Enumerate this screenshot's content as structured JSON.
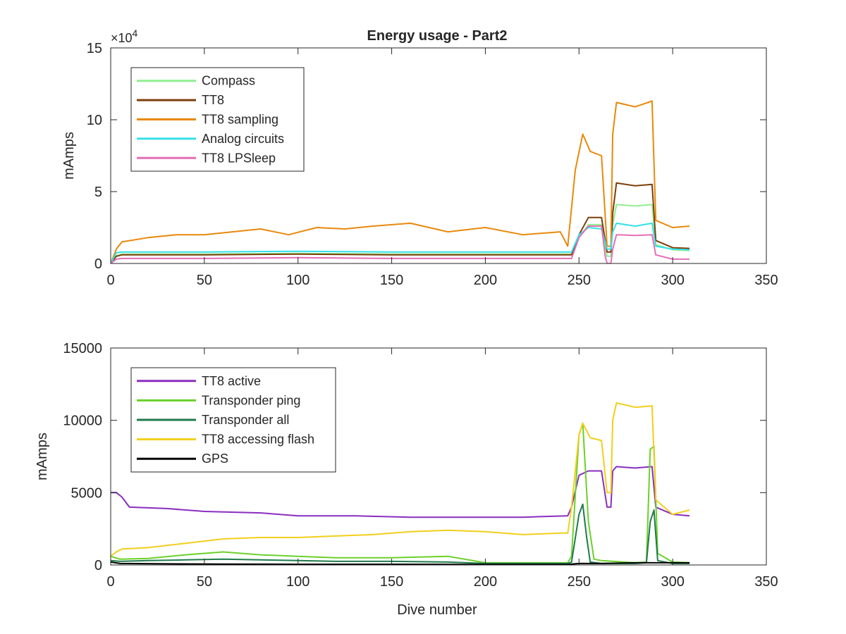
{
  "figure": {
    "title": "Energy usage - Part2",
    "xlabel": "Dive number"
  },
  "chart_data": [
    {
      "type": "line",
      "title": "Energy usage - Part2",
      "xlabel": "",
      "ylabel": "mAmps",
      "xlim": [
        0,
        350
      ],
      "ylim": [
        0,
        150000
      ],
      "xticks": [
        0,
        50,
        100,
        150,
        200,
        250,
        300,
        350
      ],
      "xtick_labels": [
        "0",
        "50",
        "100",
        "150",
        "200",
        "250",
        "300",
        "350"
      ],
      "yticks": [
        0,
        50000,
        100000,
        150000
      ],
      "ytick_labels": [
        "0",
        "5",
        "10",
        "15"
      ],
      "y_exponent_label": "×10^4",
      "grid": false,
      "legend_position": "top-left",
      "series": [
        {
          "name": "Compass",
          "color": "#90ee90",
          "x": [
            0,
            3,
            6,
            50,
            100,
            150,
            200,
            244,
            246,
            250,
            255,
            262,
            265,
            267,
            268,
            270,
            280,
            289,
            291,
            300,
            309
          ],
          "y": [
            0,
            5500,
            6500,
            6500,
            7000,
            6500,
            6500,
            6500,
            6500,
            18000,
            27000,
            27000,
            5000,
            5000,
            27000,
            41000,
            40000,
            41000,
            13000,
            9500,
            9000
          ]
        },
        {
          "name": "TT8",
          "color": "#7b3f0a",
          "x": [
            0,
            3,
            6,
            50,
            100,
            150,
            200,
            244,
            246,
            250,
            255,
            262,
            265,
            267,
            268,
            270,
            280,
            289,
            291,
            300,
            309
          ],
          "y": [
            0,
            5000,
            6000,
            6000,
            6500,
            6000,
            6000,
            6000,
            6000,
            20000,
            32000,
            32000,
            8000,
            8000,
            35000,
            56000,
            54000,
            55000,
            16000,
            11000,
            10500
          ]
        },
        {
          "name": "TT8 sampling",
          "color": "#e8890c",
          "x": [
            0,
            3,
            6,
            20,
            35,
            50,
            65,
            80,
            95,
            110,
            125,
            140,
            160,
            180,
            200,
            220,
            240,
            244,
            248,
            252,
            256,
            262,
            265,
            267,
            268,
            270,
            280,
            289,
            291,
            300,
            309
          ],
          "y": [
            0,
            10000,
            15000,
            18000,
            20000,
            20000,
            22000,
            24000,
            20000,
            25000,
            24000,
            26000,
            28000,
            22000,
            25000,
            20000,
            22000,
            12000,
            65000,
            90000,
            78000,
            75000,
            12000,
            12000,
            90000,
            112000,
            109000,
            113000,
            30000,
            25000,
            26000
          ]
        },
        {
          "name": "Analog circuits",
          "color": "#33e0e8",
          "x": [
            0,
            3,
            6,
            50,
            100,
            150,
            200,
            244,
            246,
            250,
            255,
            262,
            265,
            267,
            268,
            270,
            280,
            289,
            291,
            300,
            309
          ],
          "y": [
            0,
            7500,
            8000,
            8000,
            8500,
            8000,
            8000,
            8000,
            8000,
            20000,
            25000,
            24000,
            10000,
            10000,
            22000,
            28000,
            26000,
            28000,
            12000,
            10000,
            9500
          ]
        },
        {
          "name": "TT8 LPSleep",
          "color": "#e46fb6",
          "x": [
            0,
            3,
            6,
            50,
            100,
            150,
            200,
            244,
            246,
            250,
            255,
            262,
            264,
            265,
            267,
            268,
            270,
            280,
            289,
            291,
            300,
            309
          ],
          "y": [
            0,
            3000,
            3500,
            3500,
            4000,
            3500,
            3500,
            3500,
            3500,
            18000,
            26000,
            26000,
            5000,
            0,
            0,
            10000,
            20000,
            19500,
            20000,
            6000,
            3000,
            3000
          ]
        }
      ]
    },
    {
      "type": "line",
      "title": "",
      "xlabel": "Dive number",
      "ylabel": "mAmps",
      "xlim": [
        0,
        350
      ],
      "ylim": [
        0,
        15000
      ],
      "xticks": [
        0,
        50,
        100,
        150,
        200,
        250,
        300,
        350
      ],
      "xtick_labels": [
        "0",
        "50",
        "100",
        "150",
        "200",
        "250",
        "300",
        "350"
      ],
      "yticks": [
        0,
        5000,
        10000,
        15000
      ],
      "ytick_labels": [
        "0",
        "5000",
        "10000",
        "15000"
      ],
      "grid": false,
      "legend_position": "top-left",
      "series": [
        {
          "name": "TT8 active",
          "color": "#8a2ebf",
          "x": [
            0,
            3,
            6,
            10,
            30,
            50,
            80,
            100,
            130,
            160,
            190,
            220,
            244,
            246,
            250,
            255,
            262,
            265,
            267,
            268,
            270,
            280,
            289,
            291,
            300,
            309
          ],
          "y": [
            5000,
            5000,
            4700,
            4000,
            3900,
            3700,
            3600,
            3400,
            3400,
            3300,
            3300,
            3300,
            3400,
            4000,
            6200,
            6500,
            6500,
            4000,
            4000,
            6500,
            6800,
            6700,
            6800,
            4000,
            3500,
            3400
          ]
        },
        {
          "name": "Transponder ping",
          "color": "#6bd12a",
          "x": [
            0,
            5,
            20,
            40,
            60,
            80,
            100,
            120,
            150,
            180,
            200,
            244,
            246,
            250,
            252,
            255,
            258,
            262,
            280,
            286,
            288,
            290,
            292,
            300,
            309
          ],
          "y": [
            600,
            400,
            450,
            700,
            900,
            700,
            600,
            500,
            500,
            600,
            150,
            150,
            600,
            9000,
            9800,
            3000,
            400,
            300,
            150,
            200,
            8000,
            8200,
            800,
            200,
            150
          ]
        },
        {
          "name": "Transponder all",
          "color": "#1f7a4a",
          "x": [
            0,
            5,
            20,
            40,
            60,
            80,
            100,
            120,
            150,
            180,
            200,
            244,
            246,
            250,
            252,
            254,
            256,
            262,
            280,
            286,
            288,
            290,
            292,
            300,
            309
          ],
          "y": [
            300,
            250,
            300,
            350,
            400,
            350,
            300,
            250,
            250,
            200,
            100,
            100,
            200,
            3500,
            4200,
            2000,
            200,
            100,
            100,
            150,
            3000,
            3800,
            300,
            100,
            100
          ]
        },
        {
          "name": "TT8 accessing flash",
          "color": "#f2cf1d",
          "x": [
            0,
            3,
            6,
            20,
            40,
            60,
            80,
            100,
            120,
            140,
            160,
            180,
            200,
            220,
            240,
            244,
            246,
            250,
            252,
            256,
            262,
            265,
            267,
            268,
            270,
            280,
            289,
            291,
            300,
            309
          ],
          "y": [
            600,
            900,
            1100,
            1200,
            1500,
            1800,
            1900,
            1900,
            2000,
            2100,
            2300,
            2400,
            2300,
            2100,
            2200,
            2200,
            4000,
            9000,
            9800,
            8800,
            8600,
            5000,
            5000,
            10000,
            11200,
            10900,
            11000,
            4500,
            3500,
            3800
          ]
        },
        {
          "name": "GPS",
          "color": "#000000",
          "x": [
            0,
            5,
            30,
            60,
            100,
            150,
            200,
            244,
            250,
            262,
            280,
            289,
            291,
            309
          ],
          "y": [
            200,
            100,
            80,
            60,
            50,
            50,
            40,
            40,
            100,
            100,
            150,
            150,
            150,
            150
          ]
        }
      ]
    }
  ]
}
